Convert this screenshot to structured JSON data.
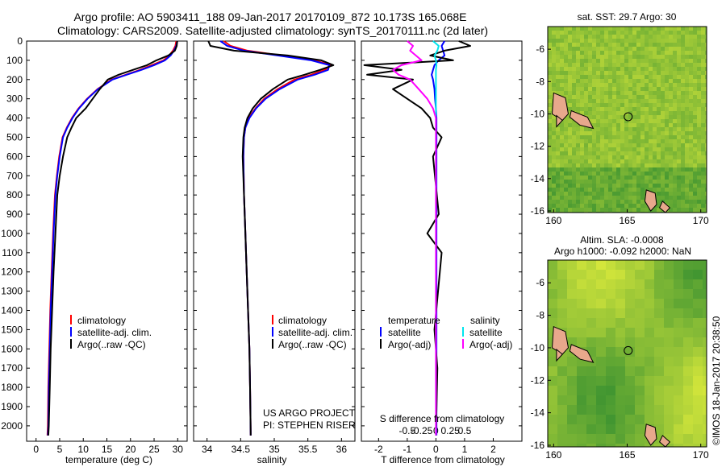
{
  "header": {
    "title_line1": "Argo profile: AO 5903411_188 09-Jan-2017 20170109_872 10.173S 165.068E",
    "title_line2": "Climatology: CARS2009. Satellite-adjusted climatology: synTS_20170111.nc (2d later)"
  },
  "colors": {
    "climatology": "#ff0000",
    "satellite": "#0000ff",
    "argo": "#000000",
    "salinity_satellite": "#00e5ee",
    "salinity_argo": "#ff00ff",
    "map_dark": "#2e8b30",
    "map_light": "#e6f03c",
    "land": "#e8a88c"
  },
  "chart_data": [
    {
      "type": "line",
      "xlabel": "temperature (deg C)",
      "ylabel": "",
      "xlim": [
        -2,
        32
      ],
      "ylim": [
        2080,
        0
      ],
      "y_reversed": true,
      "xticks": [
        0,
        5,
        10,
        15,
        20,
        25,
        30
      ],
      "yticks": [
        0,
        100,
        200,
        300,
        400,
        500,
        600,
        700,
        800,
        900,
        1000,
        1100,
        1200,
        1300,
        1400,
        1500,
        1600,
        1700,
        1800,
        1900,
        2000
      ],
      "legend": [
        "climatology",
        "satellite-adj. clim.",
        "Argo(..raw -QC)"
      ],
      "legend_position": "lower-right",
      "series": [
        {
          "name": "climatology",
          "x": [
            29.7,
            29.5,
            29.0,
            28.2,
            27.0,
            24.5,
            22.0,
            19.0,
            16.0,
            13.0,
            10.8,
            9.0,
            7.6,
            6.5,
            5.6,
            4.9,
            4.4,
            4.0,
            3.6,
            3.3,
            3.0,
            2.8,
            2.6,
            2.5,
            2.4
          ],
          "y": [
            0,
            25,
            50,
            75,
            100,
            125,
            150,
            175,
            200,
            250,
            300,
            350,
            400,
            450,
            500,
            600,
            700,
            800,
            1000,
            1200,
            1400,
            1600,
            1800,
            2000,
            2050
          ]
        },
        {
          "name": "satellite-adj. clim.",
          "x": [
            29.9,
            29.7,
            29.2,
            28.5,
            27.3,
            25.0,
            22.3,
            19.2,
            16.2,
            13.1,
            10.9,
            9.1,
            7.7,
            6.6,
            5.7,
            5.0,
            4.5,
            4.1,
            3.7,
            3.4,
            3.1,
            2.9,
            2.7,
            2.6,
            2.5
          ],
          "y": [
            0,
            25,
            50,
            75,
            100,
            125,
            150,
            175,
            200,
            250,
            300,
            350,
            400,
            450,
            500,
            600,
            700,
            800,
            1000,
            1200,
            1400,
            1600,
            1800,
            2000,
            2050
          ]
        },
        {
          "name": "Argo(..raw -QC)",
          "x": [
            29.9,
            29.8,
            29.4,
            28.0,
            25.5,
            23.5,
            20.5,
            17.5,
            15.2,
            13.5,
            12.0,
            10.5,
            8.5,
            7.5,
            6.6,
            5.7,
            5.0,
            4.5,
            4.1,
            3.7,
            3.4,
            3.1,
            2.9,
            2.7,
            2.6
          ],
          "y": [
            0,
            25,
            50,
            75,
            100,
            125,
            150,
            175,
            200,
            250,
            300,
            350,
            400,
            450,
            500,
            600,
            700,
            800,
            1000,
            1200,
            1400,
            1600,
            1800,
            2000,
            2050
          ]
        }
      ]
    },
    {
      "type": "line",
      "xlabel": "salinity",
      "ylabel": "",
      "xlim": [
        33.8,
        36.2
      ],
      "ylim": [
        2080,
        0
      ],
      "y_reversed": true,
      "xticks": [
        34,
        34.5,
        35,
        35.5,
        36
      ],
      "legend": [
        "climatology",
        "satellite-adj. clim.",
        "Argo(..raw -QC)"
      ],
      "legend_position": "lower-right",
      "annotations": [
        "US ARGO PROJECT",
        "PI: STEPHEN RISER"
      ],
      "series": [
        {
          "name": "climatology",
          "x": [
            34.25,
            34.35,
            34.6,
            35.1,
            35.6,
            35.85,
            35.75,
            35.55,
            35.3,
            35.05,
            34.85,
            34.72,
            34.62,
            34.57,
            34.55,
            34.54,
            34.55,
            34.57,
            34.59,
            34.61,
            34.63,
            34.64,
            34.65
          ],
          "y": [
            0,
            25,
            50,
            75,
            100,
            125,
            150,
            175,
            200,
            250,
            300,
            350,
            400,
            450,
            500,
            600,
            800,
            1000,
            1200,
            1400,
            1600,
            1800,
            2050
          ]
        },
        {
          "name": "satellite-adj. clim.",
          "x": [
            34.2,
            34.3,
            34.55,
            35.05,
            35.55,
            35.82,
            35.8,
            35.6,
            35.35,
            35.08,
            34.87,
            34.73,
            34.63,
            34.57,
            34.55,
            34.54,
            34.55,
            34.57,
            34.59,
            34.61,
            34.63,
            34.64,
            34.65
          ],
          "y": [
            0,
            25,
            50,
            75,
            100,
            125,
            150,
            175,
            200,
            250,
            300,
            350,
            400,
            450,
            500,
            600,
            800,
            1000,
            1200,
            1400,
            1600,
            1800,
            2050
          ]
        },
        {
          "name": "Argo(..raw -QC)",
          "x": [
            34.02,
            34.05,
            34.4,
            35.2,
            35.7,
            35.88,
            35.68,
            35.45,
            35.2,
            34.98,
            34.8,
            34.68,
            34.6,
            34.56,
            34.54,
            34.53,
            34.55,
            34.57,
            34.59,
            34.61,
            34.63,
            34.64,
            34.65
          ],
          "y": [
            0,
            25,
            50,
            75,
            100,
            125,
            150,
            175,
            200,
            250,
            300,
            350,
            400,
            450,
            500,
            600,
            800,
            1000,
            1200,
            1400,
            1600,
            1800,
            2050
          ]
        }
      ]
    },
    {
      "type": "line",
      "xlabel": "T difference from climatology",
      "xlabel_top": "S difference from climatology",
      "xlim": [
        -2.6,
        3.0
      ],
      "ylim": [
        2080,
        0
      ],
      "y_reversed": true,
      "xticks_bottom": [
        "-2",
        "-1",
        "0",
        "1",
        "2"
      ],
      "xticks_bottom_values": [
        -2,
        -1,
        0,
        1,
        2
      ],
      "xticks_top": [
        "-0.5",
        "-0.25",
        "0",
        "0.25",
        "0.5"
      ],
      "xticks_top_values": [
        -1,
        -0.5,
        0,
        0.5,
        1
      ],
      "legend_groups": [
        {
          "heading": "temperature",
          "entries": [
            "satellite",
            "Argo(-adj)"
          ]
        },
        {
          "heading": "salinity",
          "entries": [
            "satellite",
            "Argo(-adj)"
          ]
        }
      ],
      "series": [
        {
          "name": "temperature satellite",
          "x": [
            0.3,
            0.2,
            0.25,
            0.3,
            0.1,
            -0.05,
            -0.1,
            -0.15,
            -0.1,
            -0.05,
            -0.03,
            0,
            0.02,
            0.02,
            0.02,
            0.02,
            0.02
          ],
          "y": [
            0,
            25,
            50,
            75,
            100,
            125,
            150,
            175,
            200,
            250,
            300,
            350,
            400,
            600,
            1000,
            1500,
            2050
          ]
        },
        {
          "name": "temperature Argo(-adj)",
          "x": [
            0.8,
            1.2,
            0.3,
            -0.2,
            0.6,
            -2.5,
            -1.2,
            -2.4,
            -0.8,
            -1.5,
            -1.0,
            -0.5,
            -0.2,
            -0.1,
            0.2,
            -0.1,
            0.1,
            -0.3,
            0.2,
            -0.05,
            0.05,
            0.0
          ],
          "y": [
            0,
            25,
            50,
            75,
            100,
            125,
            150,
            175,
            200,
            250,
            300,
            350,
            400,
            450,
            500,
            600,
            900,
            1000,
            1100,
            1500,
            1700,
            2050
          ]
        },
        {
          "name": "salinity satellite",
          "x": [
            -0.1,
            0.1,
            0.05,
            -0.05,
            0.0,
            0.02,
            0.0,
            0.0,
            0.0,
            0.0,
            0.0,
            0.0,
            0.0
          ],
          "y": [
            0,
            25,
            50,
            75,
            100,
            125,
            150,
            200,
            300,
            500,
            1000,
            1500,
            2050
          ]
        },
        {
          "name": "salinity Argo(-adj)",
          "x": [
            -1.0,
            -0.8,
            -0.9,
            -0.7,
            -0.5,
            -1.2,
            -1.5,
            -1.3,
            -0.9,
            -0.6,
            -0.3,
            -0.1,
            0.0,
            0.0,
            0.0
          ],
          "y": [
            0,
            25,
            50,
            75,
            100,
            125,
            150,
            175,
            200,
            250,
            300,
            350,
            400,
            500,
            2050
          ]
        }
      ]
    },
    {
      "type": "heatmap",
      "title": "sat. SST: 29.7 Argo: 30",
      "xlim": [
        159.6,
        170.4
      ],
      "ylim": [
        -16.1,
        -4.6
      ],
      "xticks": [
        160,
        165,
        170
      ],
      "yticks": [
        -6,
        -8,
        -10,
        -12,
        -14,
        -16
      ],
      "marker": {
        "lon": 165.068,
        "lat": -10.173
      }
    },
    {
      "type": "heatmap",
      "title_line1": "Altim. SLA: -0.0008",
      "title_line2": "Argo h1000: -0.092 h2000: NaN",
      "xlim": [
        159.6,
        170.4
      ],
      "ylim": [
        -16.1,
        -4.6
      ],
      "xticks": [
        160,
        165,
        170
      ],
      "yticks": [
        -6,
        -8,
        -10,
        -12,
        -14,
        -16
      ],
      "marker": {
        "lon": 165.068,
        "lat": -10.173
      }
    }
  ],
  "credit": "©IMOS 18-Jan-2017 20:38:50"
}
